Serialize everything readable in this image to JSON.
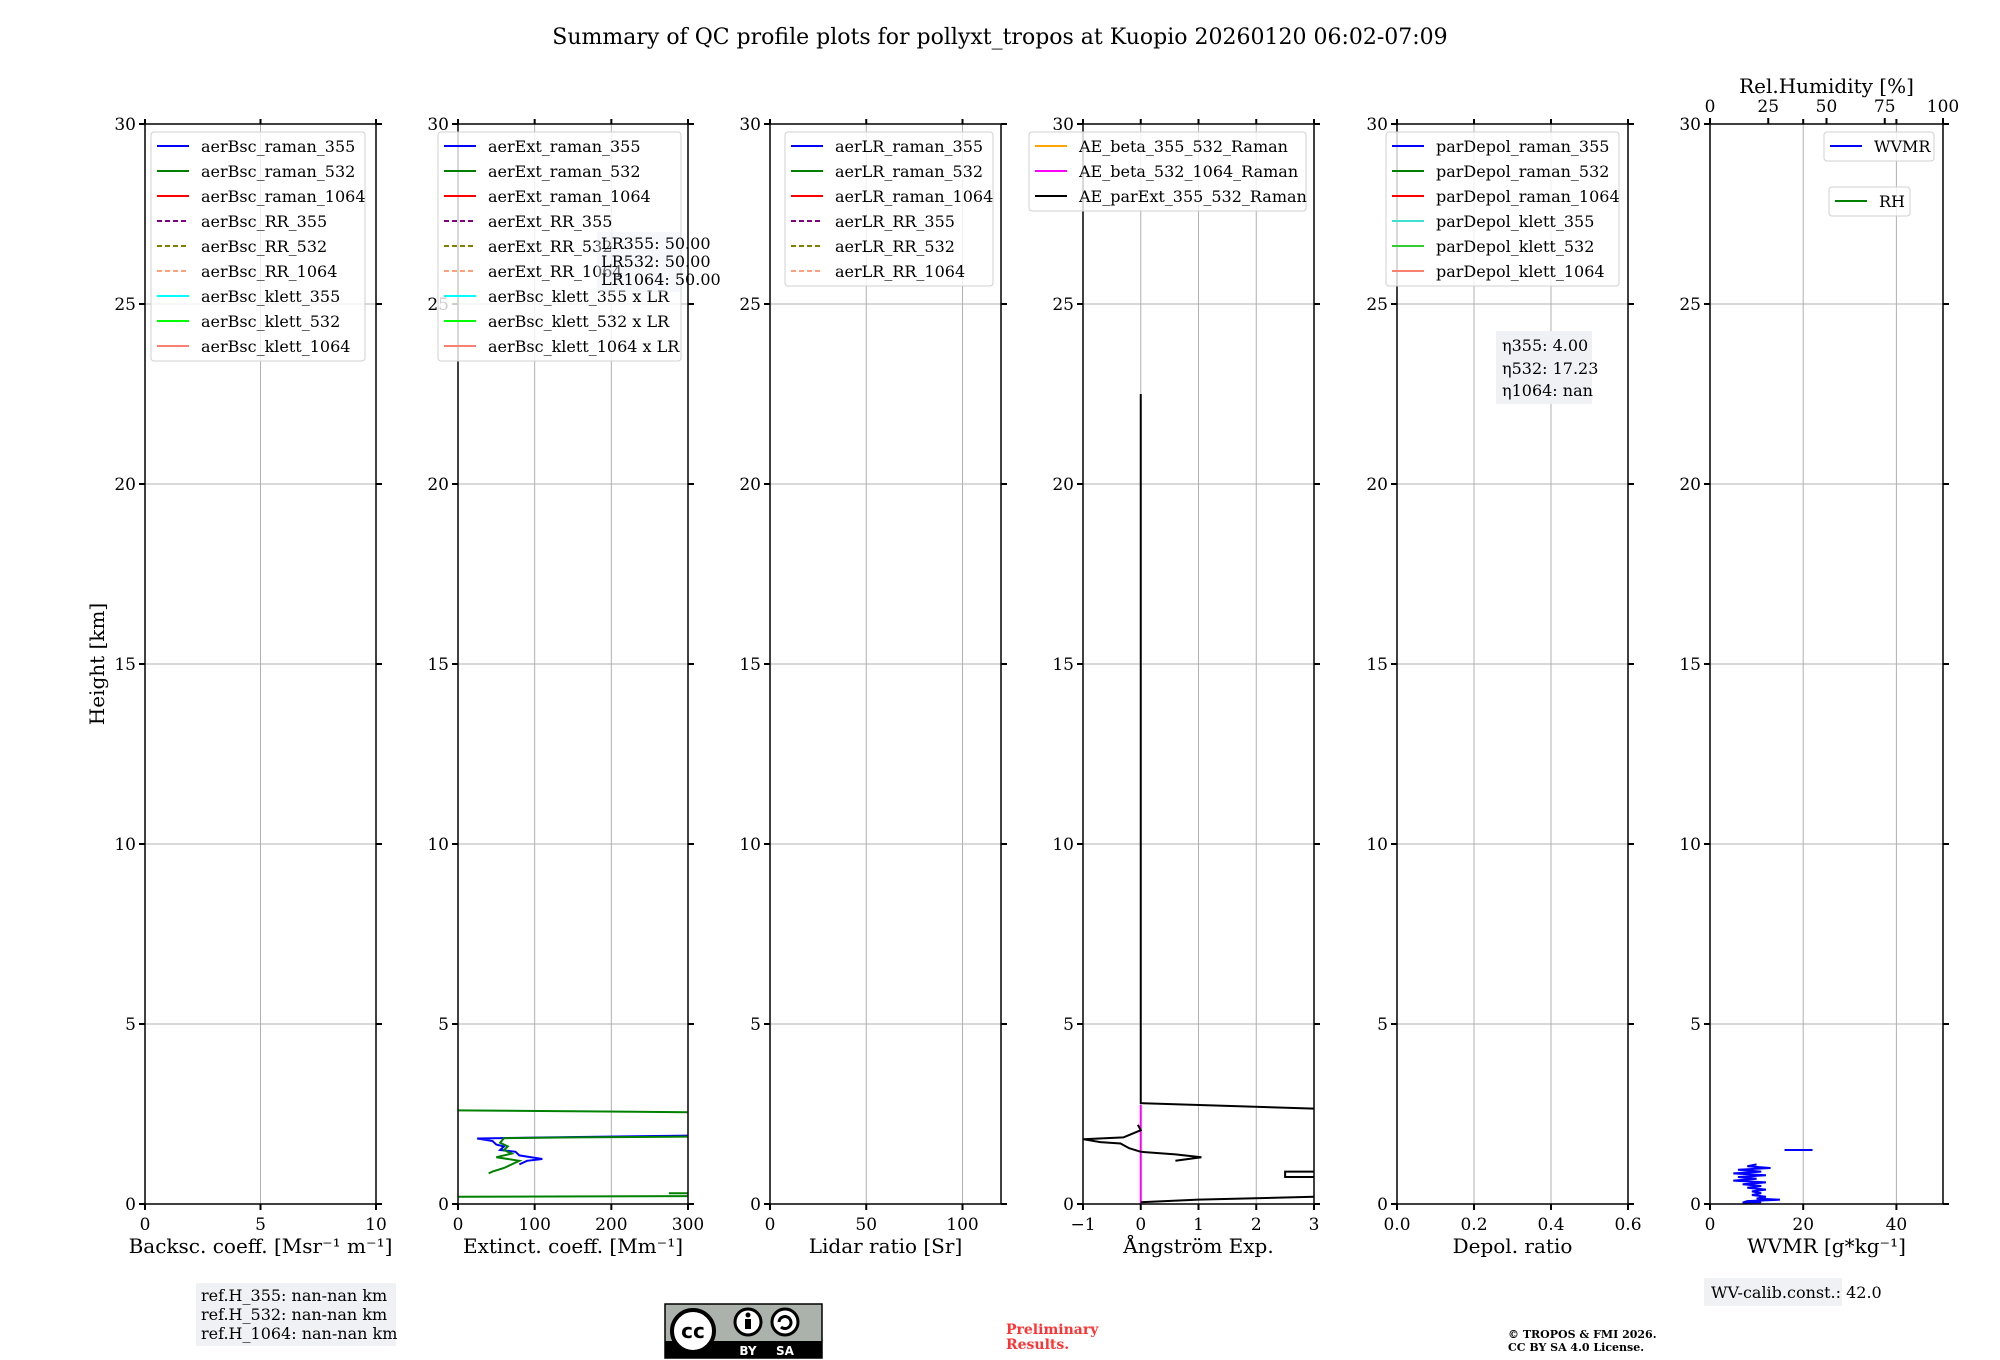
{
  "title": "Summary of QC profile plots for pollyxt_tropos at Kuopio 20260120 06:02-07:09",
  "ylabel": "Height [km]",
  "ref_heights": [
    "ref.H_355: nan-nan km",
    "ref.H_532: nan-nan km",
    "ref.H_1064: nan-nan km"
  ],
  "lidar_ratio_box": [
    "LR355: 50.00",
    "LR532: 50.00",
    "LR1064: 50.00"
  ],
  "eta_box": [
    "η355: 4.00",
    "η532: 17.23",
    "η1064: nan"
  ],
  "wv_calib": "WV-calib.const.: 42.0",
  "preliminary": [
    "Preliminary",
    "Results."
  ],
  "copyright": [
    "© TROPOS & FMI 2026.",
    "CC BY SA 4.0 License."
  ],
  "license_logo": {
    "text": "cc",
    "labels": [
      "BY",
      "SA"
    ]
  },
  "chart_data": [
    {
      "type": "line",
      "xlabel": "Backsc. coeff. [Msr⁻¹ m⁻¹]",
      "xlim": [
        0,
        10
      ],
      "xticks": [
        "0",
        "5",
        "10"
      ],
      "xtick_values": [
        0,
        5,
        10
      ],
      "ylim": [
        0,
        30
      ],
      "yticks": [
        0,
        5,
        10,
        15,
        20,
        25,
        30
      ],
      "grid": true,
      "legend_placement": "top-left",
      "legend": [
        {
          "label": "aerBsc_raman_355",
          "color": "#0000ff",
          "dash": false
        },
        {
          "label": "aerBsc_raman_532",
          "color": "#008000",
          "dash": false
        },
        {
          "label": "aerBsc_raman_1064",
          "color": "#ff0000",
          "dash": false
        },
        {
          "label": "aerBsc_RR_355",
          "color": "#800080",
          "dash": true
        },
        {
          "label": "aerBsc_RR_532",
          "color": "#808000",
          "dash": true
        },
        {
          "label": "aerBsc_RR_1064",
          "color": "#ffa07a",
          "dash": true
        },
        {
          "label": "aerBsc_klett_355",
          "color": "#00ffff",
          "dash": false
        },
        {
          "label": "aerBsc_klett_532",
          "color": "#00ff00",
          "dash": false
        },
        {
          "label": "aerBsc_klett_1064",
          "color": "#fa8072",
          "dash": false
        }
      ],
      "series": []
    },
    {
      "type": "line",
      "xlabel": "Extinct. coeff. [Mm⁻¹]",
      "xlim": [
        0,
        300
      ],
      "xticks": [
        "0",
        "100",
        "200",
        "300"
      ],
      "xtick_values": [
        0,
        100,
        200,
        300
      ],
      "ylim": [
        0,
        30
      ],
      "yticks": [
        0,
        5,
        10,
        15,
        20,
        25,
        30
      ],
      "grid": true,
      "legend_placement": "top-left",
      "legend": [
        {
          "label": "aerExt_raman_355",
          "color": "#0000ff",
          "dash": false
        },
        {
          "label": "aerExt_raman_532",
          "color": "#008000",
          "dash": false
        },
        {
          "label": "aerExt_raman_1064",
          "color": "#ff0000",
          "dash": false
        },
        {
          "label": "aerExt_RR_355",
          "color": "#800080",
          "dash": true
        },
        {
          "label": "aerExt_RR_532",
          "color": "#808000",
          "dash": true
        },
        {
          "label": "aerExt_RR_1064",
          "color": "#ffa07a",
          "dash": true
        },
        {
          "label": "aerBsc_klett_355 x LR",
          "color": "#00ffff",
          "dash": false
        },
        {
          "label": "aerBsc_klett_532 x LR",
          "color": "#00ff00",
          "dash": false
        },
        {
          "label": "aerBsc_klett_1064 x LR",
          "color": "#fa8072",
          "dash": false
        }
      ],
      "series": [
        {
          "name": "aerExt_raman_355",
          "color": "#0000ff",
          "points": [
            [
              300,
              1.9
            ],
            [
              120,
              1.85
            ],
            [
              25,
              1.82
            ],
            [
              45,
              1.75
            ],
            [
              50,
              1.65
            ],
            [
              60,
              1.6
            ],
            [
              55,
              1.5
            ],
            [
              75,
              1.45
            ],
            [
              80,
              1.35
            ],
            [
              110,
              1.25
            ],
            [
              90,
              1.2
            ],
            [
              80,
              1.1
            ]
          ]
        },
        {
          "name": "aerExt_raman_532",
          "color": "#008000",
          "points": [
            [
              300,
              1.87
            ],
            [
              150,
              1.85
            ],
            [
              60,
              1.83
            ],
            [
              55,
              1.7
            ],
            [
              65,
              1.6
            ],
            [
              60,
              1.5
            ],
            [
              70,
              1.4
            ],
            [
              50,
              1.3
            ],
            [
              80,
              1.2
            ],
            [
              70,
              1.1
            ],
            [
              60,
              1.0
            ],
            [
              45,
              0.9
            ],
            [
              40,
              0.85
            ]
          ]
        },
        {
          "name": "aerExt_raman_532_upper",
          "color": "#008000",
          "points": [
            [
              0,
              2.6
            ],
            [
              300,
              2.55
            ]
          ]
        },
        {
          "name": "aerExt_raman_532_low",
          "color": "#008000",
          "points": [
            [
              0,
              0.2
            ],
            [
              300,
              0.22
            ]
          ]
        },
        {
          "name": "aerExt_raman_532_seg",
          "color": "#008000",
          "points": [
            [
              275,
              0.3
            ],
            [
              300,
              0.3
            ]
          ]
        }
      ]
    },
    {
      "type": "line",
      "xlabel": "Lidar ratio [Sr]",
      "xlim": [
        0,
        120
      ],
      "xticks": [
        "0",
        "50",
        "100"
      ],
      "xtick_values": [
        0,
        50,
        100
      ],
      "ylim": [
        0,
        30
      ],
      "yticks": [
        0,
        5,
        10,
        15,
        20,
        25,
        30
      ],
      "grid": true,
      "legend_placement": "top-right",
      "legend": [
        {
          "label": "aerLR_raman_355",
          "color": "#0000ff",
          "dash": false
        },
        {
          "label": "aerLR_raman_532",
          "color": "#008000",
          "dash": false
        },
        {
          "label": "aerLR_raman_1064",
          "color": "#ff0000",
          "dash": false
        },
        {
          "label": "aerLR_RR_355",
          "color": "#800080",
          "dash": true
        },
        {
          "label": "aerLR_RR_532",
          "color": "#808000",
          "dash": true
        },
        {
          "label": "aerLR_RR_1064",
          "color": "#ffa07a",
          "dash": true
        }
      ],
      "series": []
    },
    {
      "type": "line",
      "xlabel": "Ångström Exp.",
      "xlim": [
        -1,
        3
      ],
      "xticks": [
        "−1",
        "0",
        "1",
        "2",
        "3"
      ],
      "xtick_values": [
        -1,
        0,
        1,
        2,
        3
      ],
      "ylim": [
        0,
        30
      ],
      "yticks": [
        0,
        5,
        10,
        15,
        20,
        25,
        30
      ],
      "grid": true,
      "legend_placement": "top-left",
      "legend": [
        {
          "label": "AE_beta_355_532_Raman",
          "color": "#ffa500",
          "dash": false
        },
        {
          "label": "AE_beta_532_1064_Raman",
          "color": "#ff00ff",
          "dash": false
        },
        {
          "label": "AE_parExt_355_532_Raman",
          "color": "#000000",
          "dash": false
        }
      ],
      "series": [
        {
          "name": "AE_beta_532_1064_Raman",
          "color": "#ff00ff",
          "points": [
            [
              0,
              0
            ],
            [
              0,
              2.75
            ]
          ]
        },
        {
          "name": "AE_parExt_355_532_Raman",
          "color": "#000000",
          "points": [
            [
              0,
              22.5
            ],
            [
              0,
              2.8
            ],
            [
              3,
              2.65
            ]
          ]
        },
        {
          "name": "AE_parExt_355_532_Raman_low",
          "color": "#000000",
          "points": [
            [
              -0.05,
              2.2
            ],
            [
              0.0,
              2.05
            ],
            [
              -0.3,
              1.85
            ],
            [
              -1,
              1.8
            ],
            [
              -0.7,
              1.72
            ],
            [
              -0.35,
              1.68
            ],
            [
              -0.2,
              1.55
            ],
            [
              0,
              1.45
            ],
            [
              0.6,
              1.38
            ],
            [
              1.05,
              1.3
            ],
            [
              0.6,
              1.2
            ]
          ]
        },
        {
          "name": "AE_parExt_355_532_Raman_box",
          "color": "#000000",
          "points": [
            [
              3,
              0.9
            ],
            [
              2.5,
              0.9
            ],
            [
              2.5,
              0.75
            ],
            [
              3,
              0.75
            ]
          ]
        },
        {
          "name": "AE_parExt_355_532_Raman_bottom",
          "color": "#000000",
          "points": [
            [
              0,
              0.05
            ],
            [
              1,
              0.12
            ],
            [
              3,
              0.2
            ]
          ]
        }
      ]
    },
    {
      "type": "line",
      "xlabel": "Depol. ratio",
      "xlim": [
        0,
        0.6
      ],
      "xticks": [
        "0.0",
        "0.2",
        "0.4",
        "0.6"
      ],
      "xtick_values": [
        0,
        0.2,
        0.4,
        0.6
      ],
      "ylim": [
        0,
        30
      ],
      "yticks": [
        0,
        5,
        10,
        15,
        20,
        25,
        30
      ],
      "grid": true,
      "legend_placement": "top-left",
      "legend": [
        {
          "label": "parDepol_raman_355",
          "color": "#0000ff",
          "dash": false
        },
        {
          "label": "parDepol_raman_532",
          "color": "#008000",
          "dash": false
        },
        {
          "label": "parDepol_raman_1064",
          "color": "#ff0000",
          "dash": false
        },
        {
          "label": "parDepol_klett_355",
          "color": "#40e0d0",
          "dash": false
        },
        {
          "label": "parDepol_klett_532",
          "color": "#32cd32",
          "dash": false
        },
        {
          "label": "parDepol_klett_1064",
          "color": "#fa8072",
          "dash": false
        }
      ],
      "series": []
    },
    {
      "type": "line",
      "xlabel": "WVMR [g*kg⁻¹]",
      "xlim": [
        0,
        50
      ],
      "xticks": [
        "0",
        "20",
        "40"
      ],
      "xtick_values": [
        0,
        20,
        40
      ],
      "top_xlabel": "Rel.Humidity [%]",
      "top_xlim": [
        0,
        100
      ],
      "top_xticks": [
        "0",
        "25",
        "50",
        "75",
        "100"
      ],
      "top_xtick_values": [
        0,
        25,
        50,
        75,
        100
      ],
      "ylim": [
        0,
        30
      ],
      "yticks": [
        0,
        5,
        10,
        15,
        20,
        25,
        30
      ],
      "grid": true,
      "legend_placement": "top-right",
      "legend": [
        {
          "label": "WVMR",
          "color": "#0000ff",
          "dash": false
        },
        {
          "label": "RH",
          "color": "#008000",
          "dash": false
        }
      ],
      "series": [
        {
          "name": "WVMR",
          "color": "#0000ff",
          "points": [
            [
              16,
              1.5
            ],
            [
              22,
              1.5
            ]
          ]
        },
        {
          "name": "WVMR_low",
          "color": "#0000ff",
          "points": [
            [
              10,
              1.1
            ],
            [
              8,
              1.05
            ],
            [
              13,
              1.0
            ],
            [
              6,
              0.95
            ],
            [
              11,
              0.9
            ],
            [
              5,
              0.85
            ],
            [
              12,
              0.8
            ],
            [
              6,
              0.75
            ],
            [
              10,
              0.7
            ],
            [
              5,
              0.65
            ],
            [
              12,
              0.6
            ],
            [
              7,
              0.55
            ],
            [
              11,
              0.5
            ],
            [
              8,
              0.45
            ],
            [
              12,
              0.4
            ],
            [
              9,
              0.35
            ],
            [
              11,
              0.3
            ],
            [
              9,
              0.25
            ],
            [
              12,
              0.2
            ],
            [
              10,
              0.15
            ],
            [
              15,
              0.12
            ],
            [
              8,
              0.08
            ],
            [
              7,
              0.04
            ],
            [
              11,
              0.05
            ]
          ]
        }
      ]
    }
  ]
}
